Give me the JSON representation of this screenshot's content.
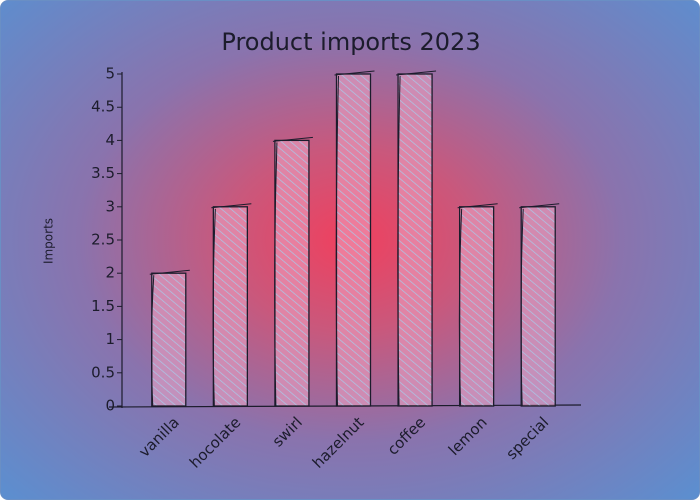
{
  "chart_data": {
    "type": "bar",
    "title": "Product imports 2023",
    "y_label": "Imports",
    "categories": [
      "vanilla",
      "hocolate",
      "swirl",
      "hazelnut",
      "coffee",
      "lemon",
      "special"
    ],
    "values": [
      2,
      3,
      4,
      5,
      5,
      3,
      3
    ],
    "ylim": [
      0,
      5
    ],
    "yticks": [
      0,
      0.5,
      1,
      1.5,
      2,
      2.5,
      3,
      3.5,
      4,
      4.5,
      5
    ],
    "grid": false
  }
}
